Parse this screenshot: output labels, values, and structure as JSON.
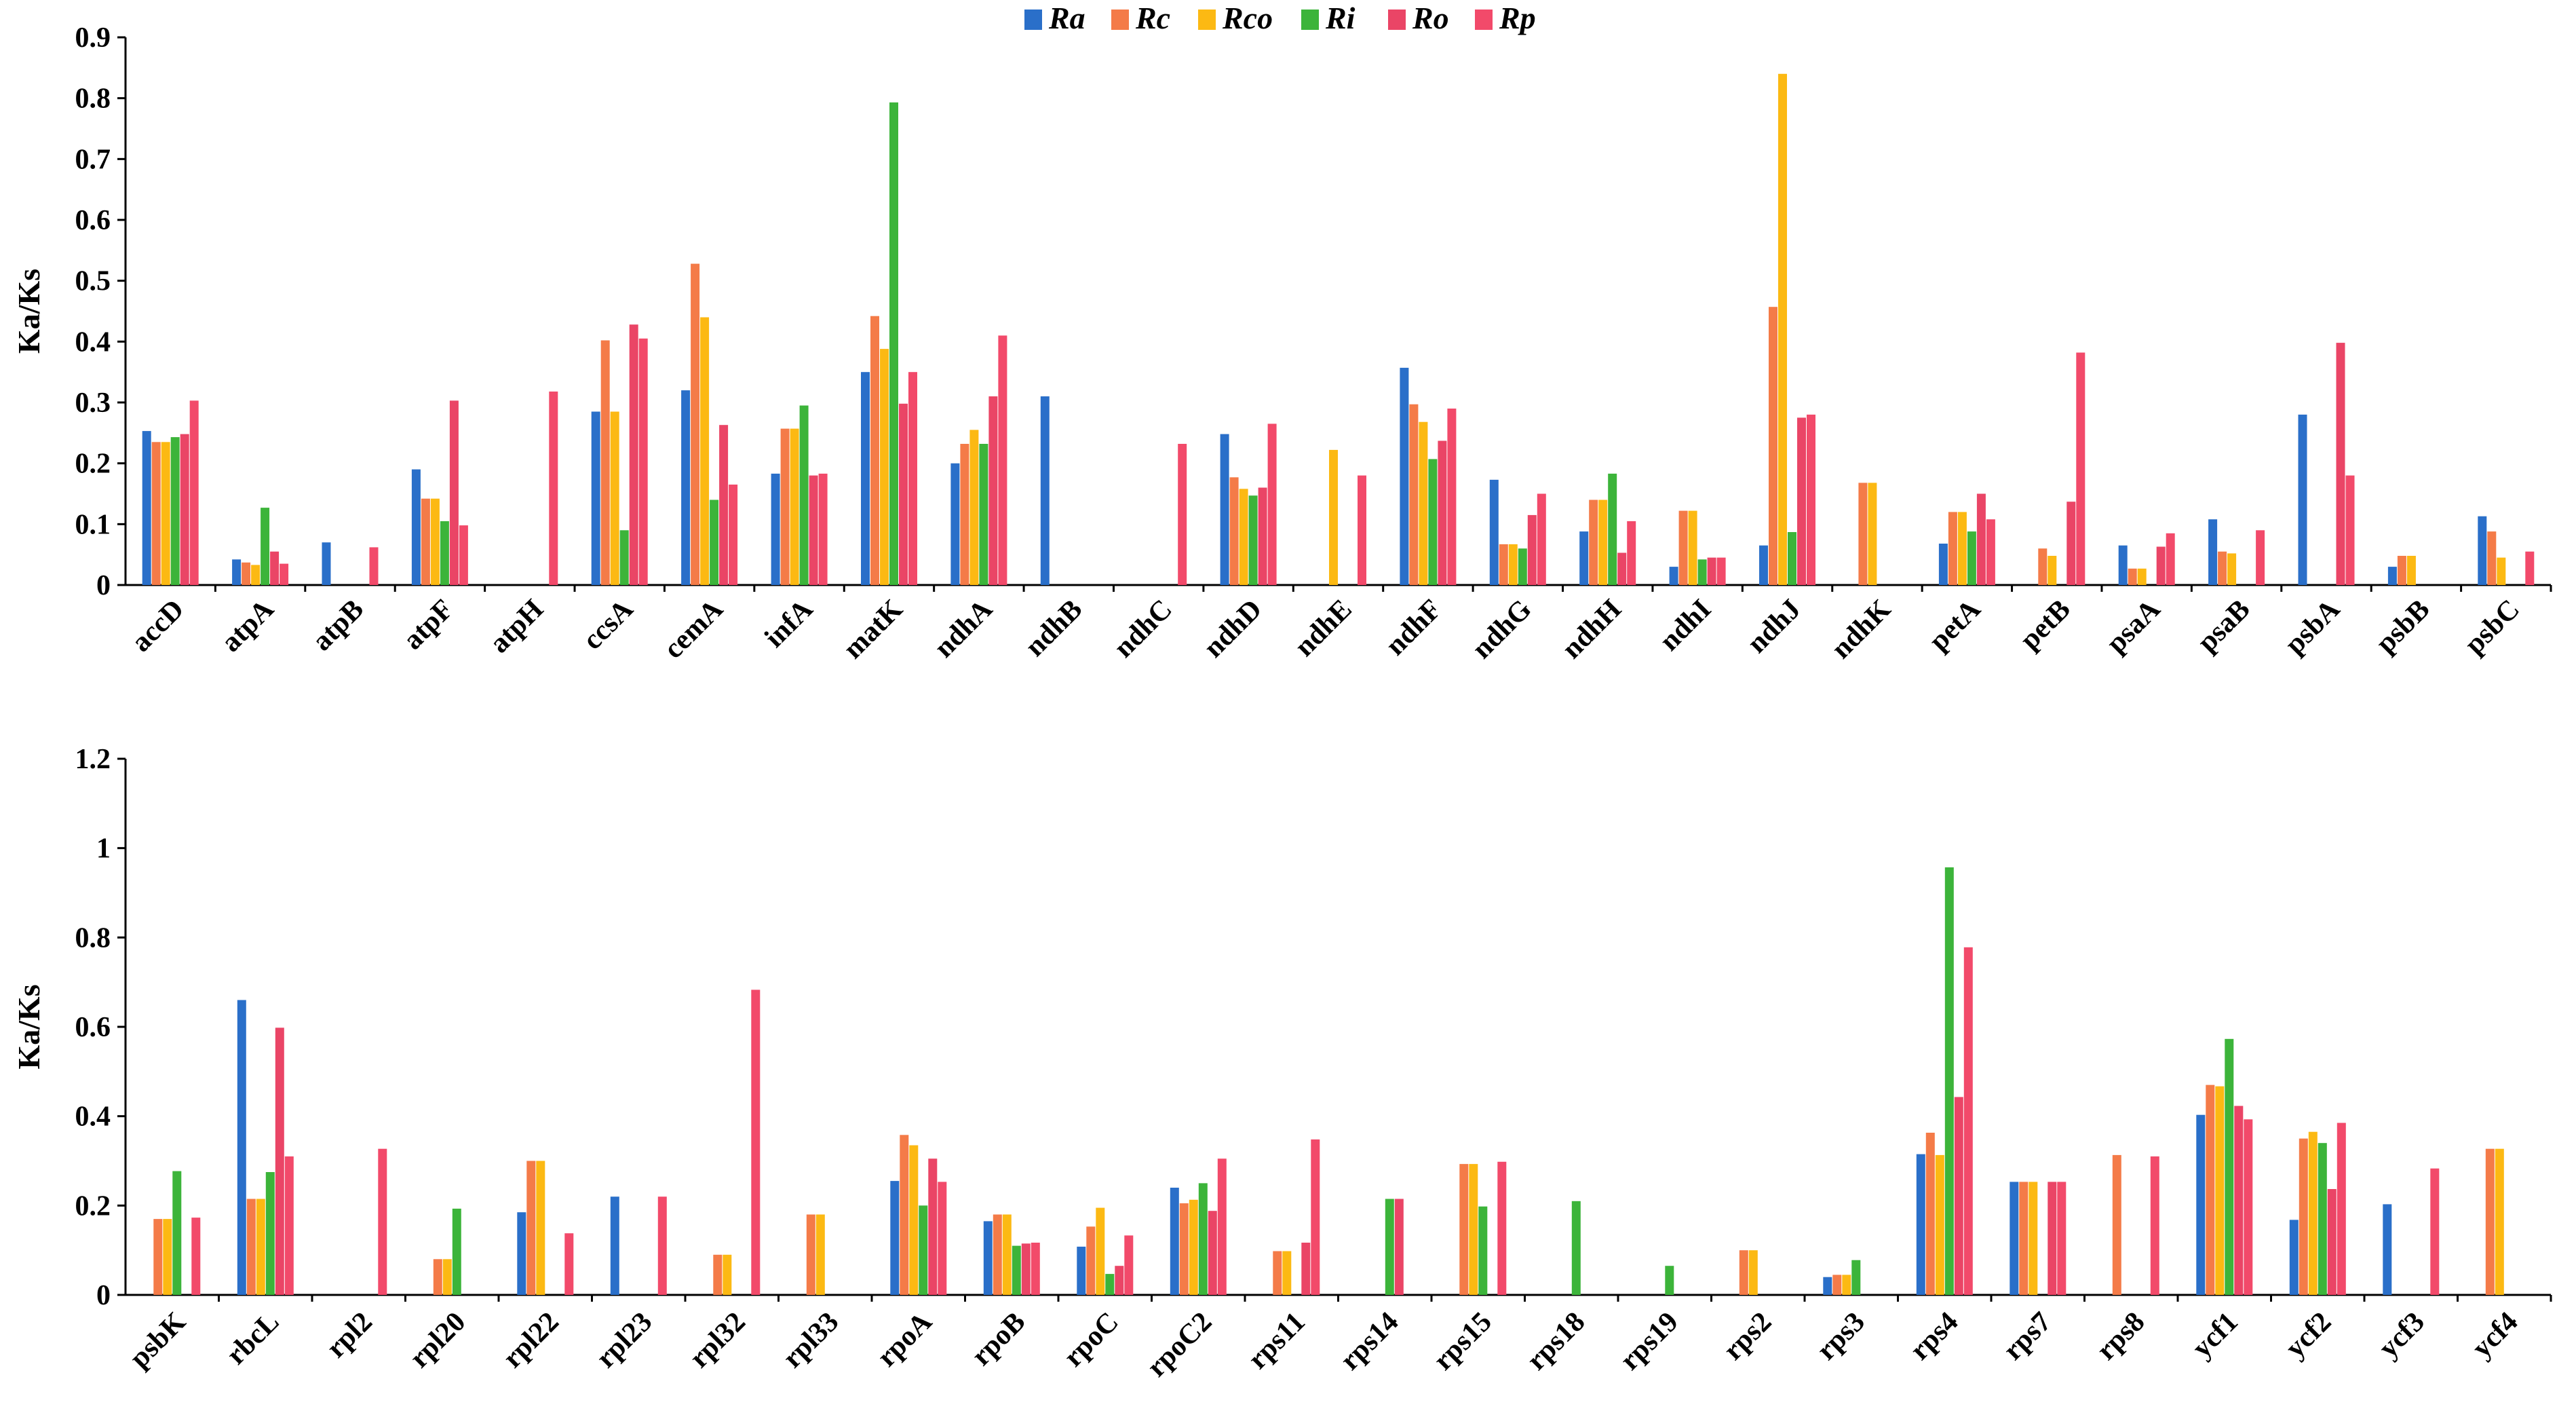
{
  "chart_data": [
    {
      "type": "bar",
      "ylabel": "Ka/Ks",
      "ylim": [
        0,
        0.9
      ],
      "yticks": [
        0,
        0.1,
        0.2,
        0.3,
        0.4,
        0.5,
        0.6,
        0.7,
        0.8,
        0.9
      ],
      "ytick_labels": [
        "0",
        "0.1",
        "0.2",
        "0.3",
        "0.4",
        "0.5",
        "0.6",
        "0.7",
        "0.8",
        "0.9"
      ],
      "legend": {
        "position": "top-center",
        "entries": [
          "Ra",
          "Rc",
          "Rco",
          "Ri",
          "Ro",
          "Rp"
        ]
      },
      "series_colors": [
        "#2a6fc9",
        "#f47b48",
        "#fcb913",
        "#3cb43a",
        "#ea4566",
        "#f24a6a"
      ],
      "categories": [
        "accD",
        "atpA",
        "atpB",
        "atpF",
        "atpH",
        "ccsA",
        "cemA",
        "infA",
        "matK",
        "ndhA",
        "ndhB",
        "ndhC",
        "ndhD",
        "ndhE",
        "ndhF",
        "ndhG",
        "ndhH",
        "ndhI",
        "ndhJ",
        "ndhK",
        "petA",
        "petB",
        "psaA",
        "psaB",
        "psbA",
        "psbB",
        "psbC"
      ],
      "series": [
        {
          "name": "Ra",
          "values": [
            0.253,
            0.042,
            0.07,
            0.19,
            0,
            0.285,
            0.32,
            0.183,
            0.35,
            0.2,
            0.31,
            0,
            0.248,
            0,
            0.357,
            0.173,
            0.088,
            0.03,
            0.065,
            0,
            0.068,
            0,
            0.065,
            0.108,
            0.28,
            0.03,
            0.113
          ]
        },
        {
          "name": "Rc",
          "values": [
            0.235,
            0.037,
            0,
            0.142,
            0,
            0.402,
            0.528,
            0.257,
            0.442,
            0.232,
            0,
            0,
            0.177,
            0,
            0.297,
            0.067,
            0.14,
            0.122,
            0.457,
            0.168,
            0.12,
            0.06,
            0.027,
            0.055,
            0,
            0.048,
            0.088
          ]
        },
        {
          "name": "Rco",
          "values": [
            0.235,
            0.033,
            0,
            0.142,
            0,
            0.285,
            0.44,
            0.257,
            0.388,
            0.255,
            0,
            0,
            0.158,
            0.222,
            0.268,
            0.067,
            0.14,
            0.122,
            0.84,
            0.168,
            0.12,
            0.048,
            0.027,
            0.052,
            0,
            0.048,
            0.045
          ]
        },
        {
          "name": "Ri",
          "values": [
            0.243,
            0.127,
            0,
            0.105,
            0,
            0.09,
            0.14,
            0.295,
            0.793,
            0.232,
            0,
            0,
            0.147,
            0,
            0.207,
            0.06,
            0.183,
            0.042,
            0.087,
            0,
            0.088,
            0,
            0,
            0,
            0,
            0,
            0
          ]
        },
        {
          "name": "Ro",
          "values": [
            0.248,
            0.055,
            0,
            0.303,
            0,
            0.428,
            0.263,
            0.18,
            0.298,
            0.31,
            0,
            0,
            0.16,
            0,
            0.237,
            0.115,
            0.053,
            0.045,
            0.275,
            0,
            0.15,
            0.137,
            0.063,
            0,
            0.398,
            0,
            0
          ]
        },
        {
          "name": "Rp",
          "values": [
            0.303,
            0.035,
            0.062,
            0.098,
            0.318,
            0.405,
            0.165,
            0.183,
            0.35,
            0.41,
            0,
            0.232,
            0.265,
            0.18,
            0.29,
            0.15,
            0.105,
            0.045,
            0.28,
            0,
            0.108,
            0.382,
            0.085,
            0.09,
            0.18,
            0,
            0.055
          ]
        }
      ]
    },
    {
      "type": "bar",
      "ylabel": "Ka/Ks",
      "ylim": [
        0,
        1.2
      ],
      "yticks": [
        0,
        0.2,
        0.4,
        0.6,
        0.8,
        1,
        1.2
      ],
      "ytick_labels": [
        "0",
        "0.2",
        "0.4",
        "0.6",
        "0.8",
        "1",
        "1.2"
      ],
      "series_colors": [
        "#2a6fc9",
        "#f47b48",
        "#fcb913",
        "#3cb43a",
        "#ea4566",
        "#f24a6a"
      ],
      "categories": [
        "psbK",
        "rbcL",
        "rpl2",
        "rpl20",
        "rpl22",
        "rpl23",
        "rpl32",
        "rpl33",
        "rpoA",
        "rpoB",
        "rpoC",
        "rpoC2",
        "rps11",
        "rps14",
        "rps15",
        "rps18",
        "rps19",
        "rps2",
        "rps3",
        "rps4",
        "rps7",
        "rps8",
        "ycf1",
        "ycf2",
        "ycf3",
        "ycf4"
      ],
      "series": [
        {
          "name": "Ra",
          "values": [
            0,
            0.66,
            0,
            0,
            0.185,
            0.22,
            0,
            0,
            0.255,
            0.165,
            0.108,
            0.24,
            0,
            0,
            0,
            0,
            0,
            0,
            0.04,
            0.315,
            0.253,
            0,
            0.403,
            0.168,
            0.203,
            0
          ]
        },
        {
          "name": "Rc",
          "values": [
            0.17,
            0.215,
            0,
            0.08,
            0.3,
            0,
            0.09,
            0.18,
            0.358,
            0.18,
            0.153,
            0.205,
            0.098,
            0,
            0.293,
            0,
            0,
            0.1,
            0.045,
            0.363,
            0.253,
            0.313,
            0.47,
            0.35,
            0,
            0.327
          ]
        },
        {
          "name": "Rco",
          "values": [
            0.17,
            0.215,
            0,
            0.08,
            0.3,
            0,
            0.09,
            0.18,
            0.335,
            0.18,
            0.195,
            0.213,
            0.098,
            0,
            0.293,
            0,
            0,
            0.1,
            0.045,
            0.313,
            0.253,
            0,
            0.467,
            0.365,
            0,
            0.327
          ]
        },
        {
          "name": "Ri",
          "values": [
            0.277,
            0.275,
            0,
            0.193,
            0,
            0,
            0,
            0,
            0.2,
            0.11,
            0.047,
            0.25,
            0,
            0.215,
            0.198,
            0.21,
            0.065,
            0,
            0.078,
            0.957,
            0,
            0,
            0.573,
            0.34,
            0,
            0
          ]
        },
        {
          "name": "Ro",
          "values": [
            0,
            0.598,
            0,
            0,
            0,
            0,
            0,
            0,
            0.305,
            0.115,
            0.065,
            0.188,
            0.117,
            0.215,
            0,
            0,
            0,
            0,
            0,
            0.443,
            0.253,
            0,
            0.423,
            0.237,
            0,
            0
          ]
        },
        {
          "name": "Rp",
          "values": [
            0.173,
            0.31,
            0.327,
            0,
            0.138,
            0.22,
            0.683,
            0,
            0.253,
            0.117,
            0.133,
            0.305,
            0.348,
            0,
            0.298,
            0,
            0,
            0,
            0,
            0.778,
            0.253,
            0.31,
            0.393,
            0.385,
            0.283,
            0
          ]
        }
      ]
    }
  ]
}
